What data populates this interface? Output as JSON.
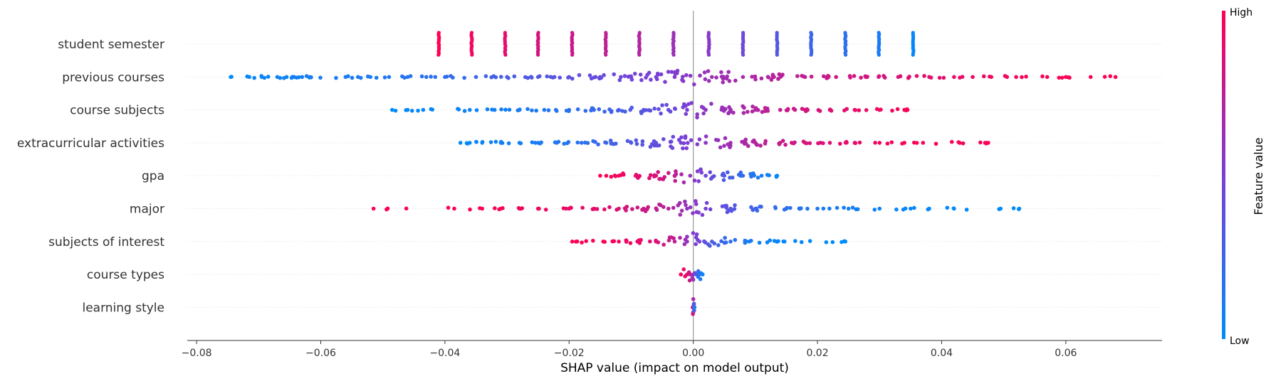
{
  "chart_data": {
    "type": "scatter",
    "subtype": "shap-beeswarm",
    "xlabel": "SHAP value (impact on model output)",
    "xlim": [
      -0.0815,
      0.0755
    ],
    "xticks": [
      -0.08,
      -0.06,
      -0.04,
      -0.02,
      0.0,
      0.02,
      0.04,
      0.06
    ],
    "xtick_labels": [
      "−0.08",
      "−0.06",
      "−0.04",
      "−0.02",
      "0.00",
      "0.02",
      "0.04",
      "0.06"
    ],
    "colorbar": {
      "title": "Feature value",
      "high_label": "High",
      "low_label": "Low",
      "high_color": "#ff0052",
      "low_color": "#008bfb",
      "mid_color": "#7b3fd6"
    },
    "zero_line": true,
    "features": [
      {
        "name": "student semester",
        "spread": 0,
        "vertical_bars": true,
        "values": [
          [
            -0.041,
            1.0
          ],
          [
            -0.0357,
            0.95
          ],
          [
            -0.0303,
            0.9
          ],
          [
            -0.025,
            0.85
          ],
          [
            -0.0195,
            0.8
          ],
          [
            -0.0141,
            0.75
          ],
          [
            -0.0087,
            0.7
          ],
          [
            -0.0032,
            0.62
          ],
          [
            0.0025,
            0.55
          ],
          [
            0.008,
            0.45
          ],
          [
            0.0135,
            0.35
          ],
          [
            0.019,
            0.25
          ],
          [
            0.0245,
            0.18
          ],
          [
            0.0299,
            0.1
          ],
          [
            0.0354,
            0.03
          ]
        ]
      },
      {
        "name": "previous courses",
        "spread": 0.035,
        "values": [
          [
            -0.0745,
            0.0
          ],
          [
            -0.0715,
            0.02
          ],
          [
            -0.0695,
            0.04
          ],
          [
            -0.067,
            0.05
          ],
          [
            -0.0655,
            0.06
          ],
          [
            -0.0643,
            0.07
          ],
          [
            -0.063,
            0.08
          ],
          [
            -0.0617,
            0.09
          ],
          [
            -0.056,
            0.1
          ],
          [
            -0.054,
            0.12
          ],
          [
            -0.052,
            0.12
          ],
          [
            -0.049,
            0.14
          ],
          [
            -0.046,
            0.15
          ],
          [
            -0.043,
            0.17
          ],
          [
            -0.04,
            0.2
          ],
          [
            -0.035,
            0.24
          ],
          [
            -0.03,
            0.3
          ],
          [
            -0.025,
            0.34
          ],
          [
            -0.02,
            0.38
          ],
          [
            -0.015,
            0.42
          ],
          [
            -0.01,
            0.47
          ],
          [
            -0.006,
            0.5
          ],
          [
            -0.003,
            0.52
          ],
          [
            0.003,
            0.62
          ],
          [
            0.008,
            0.67
          ],
          [
            0.013,
            0.72
          ],
          [
            0.018,
            0.76
          ],
          [
            0.023,
            0.8
          ],
          [
            0.028,
            0.83
          ],
          [
            0.033,
            0.86
          ],
          [
            0.038,
            0.89
          ],
          [
            0.042,
            0.91
          ],
          [
            0.045,
            0.94
          ],
          [
            0.048,
            0.95
          ],
          [
            0.052,
            0.96
          ],
          [
            0.057,
            0.97
          ],
          [
            0.06,
            0.98
          ],
          [
            0.064,
            0.99
          ],
          [
            0.068,
            1.0
          ]
        ]
      },
      {
        "name": "course subjects",
        "spread": 0.03,
        "values": [
          [
            -0.0485,
            0.0
          ],
          [
            -0.046,
            0.02
          ],
          [
            -0.0435,
            0.03
          ],
          [
            -0.036,
            0.05
          ],
          [
            -0.032,
            0.08
          ],
          [
            -0.028,
            0.1
          ],
          [
            -0.024,
            0.13
          ],
          [
            -0.02,
            0.17
          ],
          [
            -0.016,
            0.22
          ],
          [
            -0.012,
            0.28
          ],
          [
            -0.008,
            0.35
          ],
          [
            -0.004,
            0.42
          ],
          [
            -0.001,
            0.5
          ],
          [
            0.002,
            0.57
          ],
          [
            0.006,
            0.64
          ],
          [
            0.01,
            0.71
          ],
          [
            0.014,
            0.77
          ],
          [
            0.018,
            0.83
          ],
          [
            0.022,
            0.88
          ],
          [
            0.026,
            0.92
          ],
          [
            0.03,
            0.95
          ],
          [
            0.034,
            0.97
          ],
          [
            0.0345,
            0.99
          ]
        ]
      },
      {
        "name": "extracurricular activities",
        "spread": 0.03,
        "values": [
          [
            -0.0375,
            0.0
          ],
          [
            -0.036,
            0.02
          ],
          [
            -0.034,
            0.04
          ],
          [
            -0.031,
            0.06
          ],
          [
            -0.028,
            0.08
          ],
          [
            -0.025,
            0.1
          ],
          [
            -0.022,
            0.13
          ],
          [
            -0.018,
            0.18
          ],
          [
            -0.014,
            0.25
          ],
          [
            -0.01,
            0.32
          ],
          [
            -0.006,
            0.4
          ],
          [
            -0.002,
            0.48
          ],
          [
            0.002,
            0.56
          ],
          [
            0.006,
            0.64
          ],
          [
            0.01,
            0.71
          ],
          [
            0.014,
            0.78
          ],
          [
            0.018,
            0.84
          ],
          [
            0.022,
            0.88
          ],
          [
            0.026,
            0.92
          ],
          [
            0.03,
            0.95
          ],
          [
            0.034,
            0.97
          ],
          [
            0.037,
            0.98
          ],
          [
            0.047,
            0.99
          ],
          [
            0.0475,
            1.0
          ]
        ]
      },
      {
        "name": "gpa",
        "spread": 0.025,
        "values": [
          [
            -0.015,
            0.98
          ],
          [
            -0.012,
            0.95
          ],
          [
            -0.009,
            0.9
          ],
          [
            -0.006,
            0.84
          ],
          [
            -0.003,
            0.75
          ],
          [
            -0.0005,
            0.6
          ],
          [
            0.002,
            0.45
          ],
          [
            0.005,
            0.32
          ],
          [
            0.008,
            0.2
          ],
          [
            0.011,
            0.1
          ],
          [
            0.0135,
            0.02
          ]
        ]
      },
      {
        "name": "major",
        "spread": 0.022,
        "values": [
          [
            -0.0515,
            1.0
          ],
          [
            -0.0385,
            0.99
          ],
          [
            -0.034,
            0.98
          ],
          [
            -0.031,
            0.97
          ],
          [
            -0.028,
            0.96
          ],
          [
            -0.025,
            0.95
          ],
          [
            -0.02,
            0.93
          ],
          [
            -0.016,
            0.9
          ],
          [
            -0.012,
            0.86
          ],
          [
            -0.008,
            0.8
          ],
          [
            -0.004,
            0.72
          ],
          [
            -0.001,
            0.6
          ],
          [
            0.002,
            0.48
          ],
          [
            0.006,
            0.35
          ],
          [
            0.01,
            0.25
          ],
          [
            0.015,
            0.18
          ],
          [
            0.02,
            0.12
          ],
          [
            0.025,
            0.08
          ],
          [
            0.03,
            0.05
          ],
          [
            0.035,
            0.03
          ],
          [
            0.038,
            0.02
          ],
          [
            0.042,
            0.01
          ],
          [
            0.0495,
            0.0
          ],
          [
            0.0525,
            0.0
          ]
        ]
      },
      {
        "name": "subjects of interest",
        "spread": 0.018,
        "values": [
          [
            -0.0195,
            1.0
          ],
          [
            -0.0145,
            0.98
          ],
          [
            -0.012,
            0.96
          ],
          [
            -0.009,
            0.92
          ],
          [
            -0.006,
            0.86
          ],
          [
            -0.003,
            0.75
          ],
          [
            -0.001,
            0.6
          ],
          [
            0.001,
            0.45
          ],
          [
            0.003,
            0.3
          ],
          [
            0.006,
            0.18
          ],
          [
            0.009,
            0.1
          ],
          [
            0.0135,
            0.03
          ],
          [
            0.0245,
            0.0
          ]
        ]
      },
      {
        "name": "course types",
        "spread": 0.012,
        "values": [
          [
            -0.002,
            0.95
          ],
          [
            -0.001,
            0.9
          ],
          [
            -0.0005,
            0.8
          ],
          [
            0.0,
            0.55
          ],
          [
            0.0005,
            0.3
          ],
          [
            0.001,
            0.12
          ],
          [
            0.0015,
            0.05
          ]
        ]
      },
      {
        "name": "learning style",
        "spread": 0.01,
        "values": [
          [
            -0.0001,
            0.95
          ],
          [
            0.0,
            0.7
          ],
          [
            0.0001,
            0.4
          ],
          [
            0.0002,
            0.1
          ]
        ]
      }
    ]
  }
}
